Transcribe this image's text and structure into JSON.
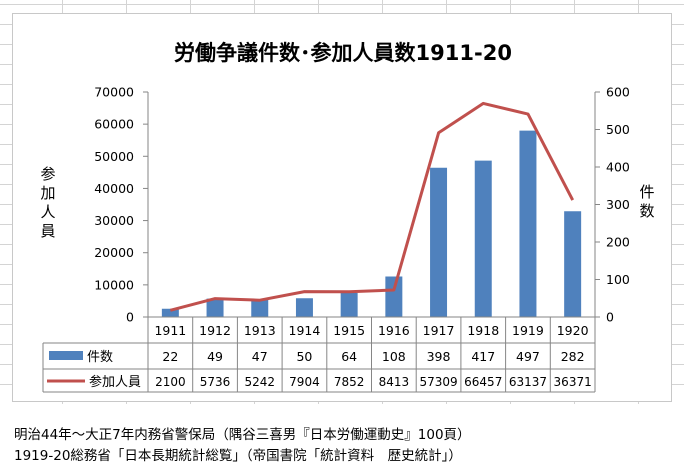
{
  "colors": {
    "bar": "#4f81bd",
    "line": "#c0504d",
    "axis": "#868686",
    "grid": "#d9d9d9",
    "text": "#000000"
  },
  "chart_data": {
    "type": "bar",
    "title": "労働争議件数･参加人員数1911-20",
    "categories": [
      "1911",
      "1912",
      "1913",
      "1914",
      "1915",
      "1916",
      "1917",
      "1918",
      "1919",
      "1920"
    ],
    "series": [
      {
        "name": "件数",
        "type": "bar",
        "axis": "right",
        "values": [
          22,
          49,
          47,
          50,
          64,
          108,
          398,
          417,
          497,
          282
        ]
      },
      {
        "name": "参加人員",
        "type": "line",
        "axis": "left",
        "values": [
          2100,
          5736,
          5242,
          7904,
          7852,
          8413,
          57309,
          66457,
          63137,
          36371
        ]
      }
    ],
    "ylabel": "参加人員",
    "y2label": "件数",
    "ylim": [
      0,
      70000
    ],
    "y2lim": [
      0,
      600
    ],
    "yticks": [
      "0",
      "10000",
      "20000",
      "30000",
      "40000",
      "50000",
      "60000",
      "70000"
    ],
    "y2ticks": [
      "0",
      "100",
      "200",
      "300",
      "400",
      "500",
      "600"
    ],
    "grid": false,
    "legend": "data-table"
  },
  "notes": [
    "明治44年～大正7年内務省警保局（隅谷三喜男『日本労働運動史』100頁）",
    "1919-20総務省「日本長期統計総覧」（帝国書院「統計資料　歴史統計」）"
  ]
}
